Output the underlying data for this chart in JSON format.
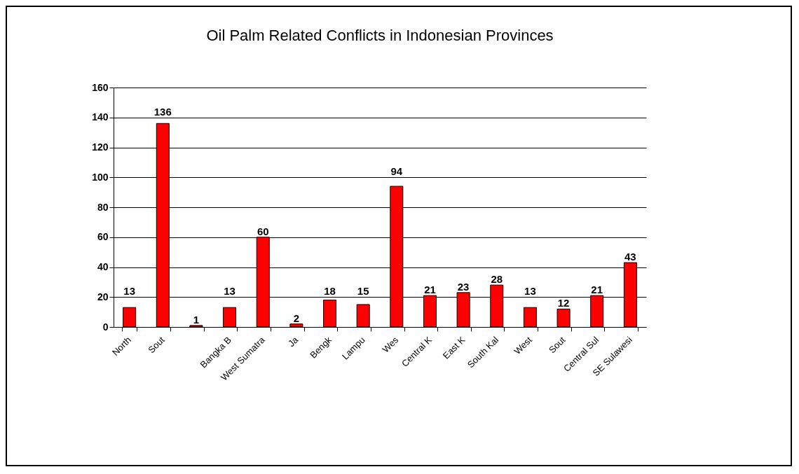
{
  "chart_data": {
    "type": "bar",
    "title": "Oil Palm Related Conflicts in Indonesian Provinces",
    "categories": [
      "North ",
      "Sout",
      null,
      "Bangka B",
      "West Sumatra",
      "Ja",
      "Bengk",
      "Lampu",
      "Wes",
      "Central K",
      "East K",
      "South Kal",
      "West",
      "Sout",
      "Central Sul",
      "SE Sulawesi"
    ],
    "values": [
      13,
      136,
      1,
      13,
      60,
      2,
      18,
      15,
      94,
      21,
      23,
      28,
      13,
      12,
      21,
      43
    ],
    "color": "#ff0000",
    "ylim": [
      0,
      160
    ],
    "yticks": [
      0,
      20,
      40,
      60,
      80,
      100,
      120,
      140,
      160
    ],
    "grid": "y",
    "data_labels": true
  }
}
